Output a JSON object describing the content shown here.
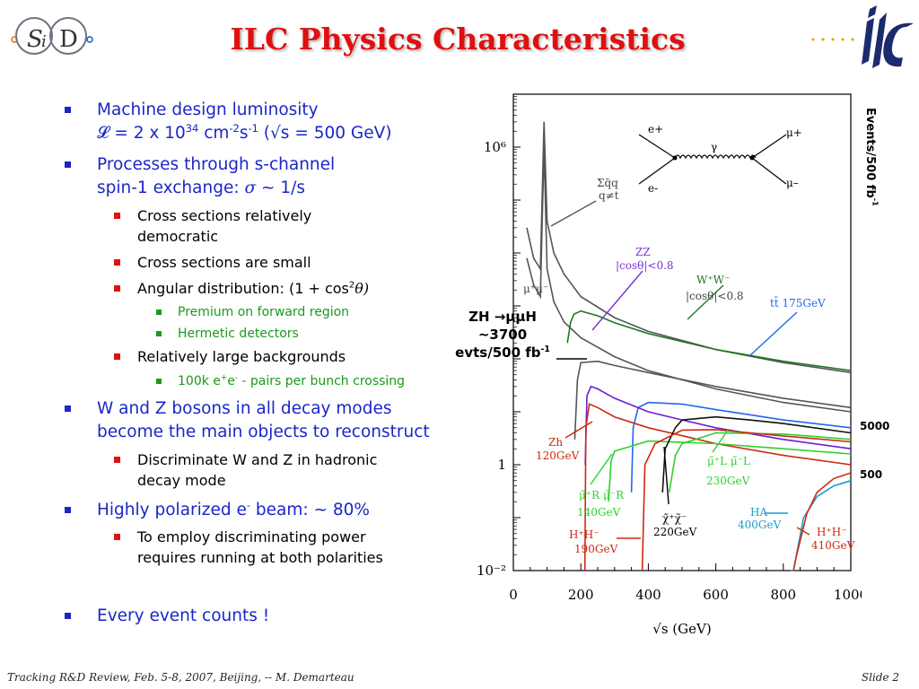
{
  "header": {
    "title": "ILC Physics Characteristics",
    "sid_logo_text": "SiD",
    "ilc_logo_text": "ilc"
  },
  "bullets": {
    "b1_line1": "Machine design luminosity",
    "b1_line2": "𝓛 = 2 x 10",
    "b1_line2_exp": "34",
    "b1_line2_unit": " cm",
    "b1_line2_unit_exp1": "-2",
    "b1_line2_s": "s",
    "b1_line2_unit_exp2": "-1",
    "b1_line2_tail": " (√s = 500 GeV)",
    "b2_line1": "Processes through s-channel",
    "b2_line2": "spin-1 exchange: ",
    "b2_sigma": "σ",
    "b2_tail": " ~ 1/s",
    "b2_sub1_line1": "Cross sections relatively",
    "b2_sub1_line2": "democratic",
    "b2_sub2": "Cross sections are small",
    "b2_sub3": "Angular distribution: (1 + cos",
    "b2_sub3_exp": "2",
    "b2_sub3_theta": "θ)",
    "b2_sub3_a": "Premium on forward region",
    "b2_sub3_b": "Hermetic detectors",
    "b2_sub4": "Relatively large backgrounds",
    "b2_sub4_a": "100k e",
    "b2_sub4_a_sup1": "+",
    "b2_sub4_a_mid": "e",
    "b2_sub4_a_sup2": "-",
    "b2_sub4_a_tail": " - pairs per bunch crossing",
    "b3_line1": "W and Z bosons in all decay modes",
    "b3_line2": "become the main objects to reconstruct",
    "b3_sub1_line1": "Discriminate W and Z in hadronic",
    "b3_sub1_line2": "decay mode",
    "b4": "Highly polarized e",
    "b4_sup": "-",
    "b4_tail": " beam: ~ 80%",
    "b4_sub1_line1": "To employ discriminating power",
    "b4_sub1_line2": "requires running at both polarities",
    "b5": "Every event counts !"
  },
  "chart_labels": {
    "y_axis": "Events/500 fb",
    "y_axis_sup": "-1",
    "ref_5000": "5000",
    "ref_500": "500",
    "zh_note_1": "ZH →μμH",
    "zh_note_2": "~3700",
    "zh_note_3": "evts/500 fb",
    "zh_note_3_sup": "-1",
    "xlabel": "√s (GeV)",
    "yticks": [
      "10⁶",
      "1",
      "10⁻²"
    ],
    "xticks": [
      "0",
      "200",
      "400",
      "600",
      "800",
      "1000"
    ],
    "feynman_labels": [
      "e+",
      "e-",
      "γ",
      "μ+",
      "μ–"
    ],
    "curve_labels": {
      "qq": "Σq̄q",
      "qq_sub": "q≠t",
      "mumu": "μ⁺μ⁻",
      "zz": "ZZ",
      "zz_cut": "|cosθ|<0.8",
      "ww": "W⁺W⁻",
      "ww_cut": "|cosθ|<0.8",
      "tt": "tt̄ 175GeV",
      "zh": "Zh",
      "zh_mass": "120GeV",
      "smuon_l": "μ̃⁺L μ̃⁻L",
      "smuon_l_mass": "230GeV",
      "smuon_r": "μ̃⁺R μ̃⁻R",
      "smuon_r_mass": "140GeV",
      "chargino": "χ̃⁺χ̃⁻",
      "chargino_mass": "220GeV",
      "hpm_1": "H⁺H⁻",
      "hpm_1_mass": "190GeV",
      "ha": "HA",
      "ha_mass": "400GeV",
      "hpm_2": "H⁺H⁻",
      "hpm_2_mass": "410GeV"
    }
  },
  "chart_data": {
    "type": "line",
    "xlabel": "√s (GeV)",
    "ylabel": "",
    "x_range": [
      0,
      1000
    ],
    "y_scale": "log",
    "y_range": [
      0.01,
      10000000
    ],
    "series": [
      {
        "name": "Σq̄q (q≠t)",
        "color": "#555555",
        "x": [
          40,
          60,
          80,
          91,
          100,
          120,
          150,
          200,
          300,
          400,
          600,
          800,
          1000
        ],
        "y": [
          30000,
          8000,
          5000,
          3000000,
          40000,
          10000,
          4000,
          1500,
          600,
          330,
          150,
          85,
          55
        ]
      },
      {
        "name": "μ⁺μ⁻",
        "color": "#555555",
        "x": [
          40,
          60,
          80,
          91,
          100,
          120,
          150,
          200,
          300,
          400,
          600,
          800,
          1000
        ],
        "y": [
          8000,
          2500,
          1500,
          1000000,
          5000,
          1200,
          500,
          250,
          110,
          60,
          27,
          15,
          10
        ]
      },
      {
        "name": "ZZ |cosθ|<0.8",
        "color": "#555555",
        "x": [
          182,
          190,
          200,
          250,
          300,
          400,
          600,
          800,
          1000
        ],
        "y": [
          3,
          40,
          85,
          90,
          75,
          55,
          30,
          18,
          12
        ]
      },
      {
        "name": "W⁺W⁻ |cosθ|<0.8",
        "color": "#227722",
        "x": [
          160,
          170,
          180,
          200,
          250,
          300,
          400,
          600,
          800,
          1000
        ],
        "y": [
          200,
          500,
          700,
          800,
          650,
          480,
          300,
          150,
          90,
          60
        ]
      },
      {
        "name": "tt̄ 175GeV",
        "color": "#2266ee",
        "x": [
          350,
          355,
          370,
          400,
          500,
          600,
          800,
          1000
        ],
        "y": [
          0.3,
          5,
          12,
          15,
          14,
          11,
          7,
          5
        ]
      },
      {
        "name": "ZH μμH",
        "color": "#6a1fd1",
        "x": [
          213,
          218,
          230,
          250,
          300,
          400,
          500,
          600,
          800,
          1000
        ],
        "y": [
          1,
          20,
          30,
          27,
          18,
          10,
          7,
          5,
          3,
          2
        ]
      },
      {
        "name": "Zh 120GeV",
        "color": "#cc2a10",
        "x": [
          212,
          215,
          225,
          250,
          300,
          400,
          600,
          800,
          1000
        ],
        "y": [
          0.01,
          5,
          14,
          12,
          8,
          5,
          2.5,
          1.5,
          1
        ]
      },
      {
        "name": "μ̃⁺R μ̃⁻R 140GeV",
        "color": "#2ed12e",
        "x": [
          282,
          290,
          300,
          400,
          600,
          800,
          1000
        ],
        "y": [
          0.2,
          1.2,
          1.8,
          2.8,
          2.5,
          2,
          1.6
        ]
      },
      {
        "name": "μ̃⁺L μ̃⁻L 230GeV",
        "color": "#2ed12e",
        "x": [
          462,
          480,
          500,
          600,
          800,
          1000
        ],
        "y": [
          0.3,
          1.5,
          2.5,
          4,
          3.8,
          3
        ]
      },
      {
        "name": "χ̃⁺χ̃⁻ 220GeV",
        "color": "#111111",
        "x": [
          442,
          450,
          480,
          500,
          600,
          700,
          800,
          1000
        ],
        "y": [
          0.3,
          2,
          5,
          7,
          8,
          7,
          6,
          4
        ]
      },
      {
        "name": "H⁺H⁻ 190GeV",
        "color": "#cc2a10",
        "x": [
          382,
          390,
          420,
          500,
          600,
          800,
          1000
        ],
        "y": [
          0.01,
          1,
          2.5,
          4.5,
          4.6,
          3.5,
          2.7
        ]
      },
      {
        "name": "HA 400GeV",
        "color": "#1a9ad0",
        "x": [
          822,
          830,
          860,
          900,
          950,
          1000
        ],
        "y": [
          0.01,
          0.01,
          0.1,
          0.25,
          0.4,
          0.5
        ]
      },
      {
        "name": "H⁺H⁻ 410GeV",
        "color": "#cc2a10",
        "x": [
          830,
          840,
          870,
          900,
          950,
          1000
        ],
        "y": [
          0.01,
          0.02,
          0.12,
          0.3,
          0.55,
          0.7
        ]
      }
    ]
  },
  "footer": {
    "text": "Tracking R&D Review, Feb. 5-8, 2007, Beijing, -- M. Demarteau",
    "slide": "Slide 2"
  },
  "colors": {
    "title": "#e01010",
    "bullet_l1": "#1a26c8",
    "bullet_l3": "#1a9a1a",
    "marker_l2": "#e01010"
  }
}
